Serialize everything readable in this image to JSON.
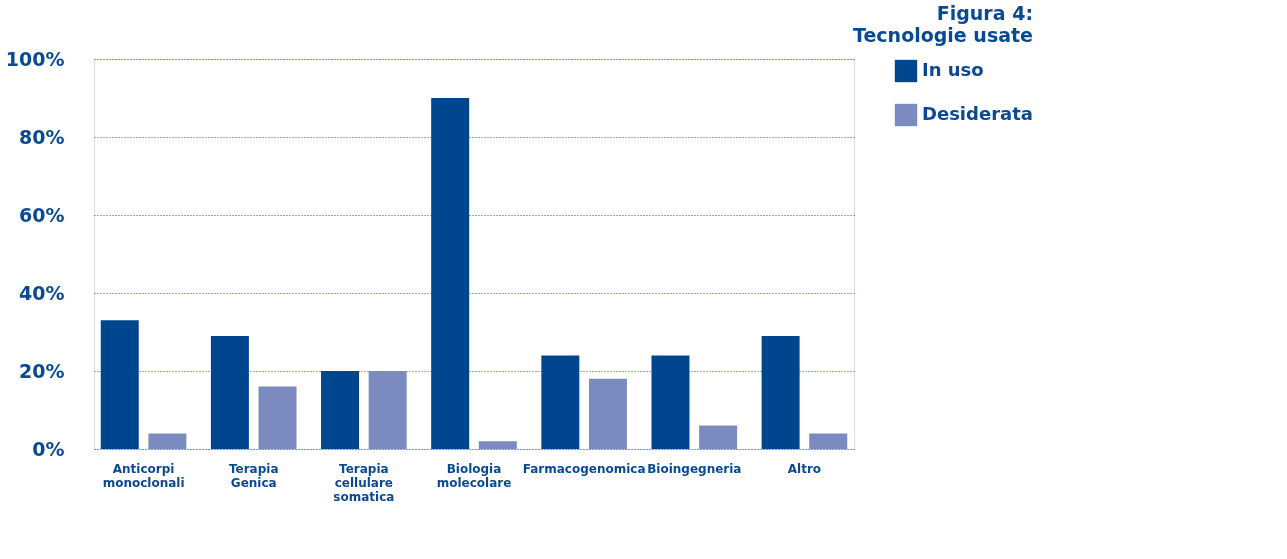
{
  "chart_data": {
    "type": "bar",
    "title": "Figura 4:",
    "subtitle": "Tecnologie usate",
    "categories": [
      "Anticorpi monoclonali",
      "Terapia Genica",
      "Terapia cellulare somatica",
      "Biologia molecolare",
      "Farmacogenomica",
      "Bioingegneria",
      "Altro"
    ],
    "series": [
      {
        "name": "In uso",
        "color": "#00468e",
        "values": [
          33,
          29,
          20,
          90,
          24,
          24,
          29
        ]
      },
      {
        "name": "Desiderata",
        "color": "#7b8bbf",
        "values": [
          4,
          16,
          20,
          2,
          18,
          6,
          4
        ]
      }
    ],
    "ylim": [
      0,
      100
    ],
    "yticks": [
      {
        "value": 0,
        "label": "0%"
      },
      {
        "value": 20,
        "label": "20%"
      },
      {
        "value": 40,
        "label": "40%"
      },
      {
        "value": 60,
        "label": "60%"
      },
      {
        "value": 80,
        "label": "80%"
      },
      {
        "value": 100,
        "label": "100%"
      }
    ],
    "grid": "y",
    "legend": "right"
  }
}
